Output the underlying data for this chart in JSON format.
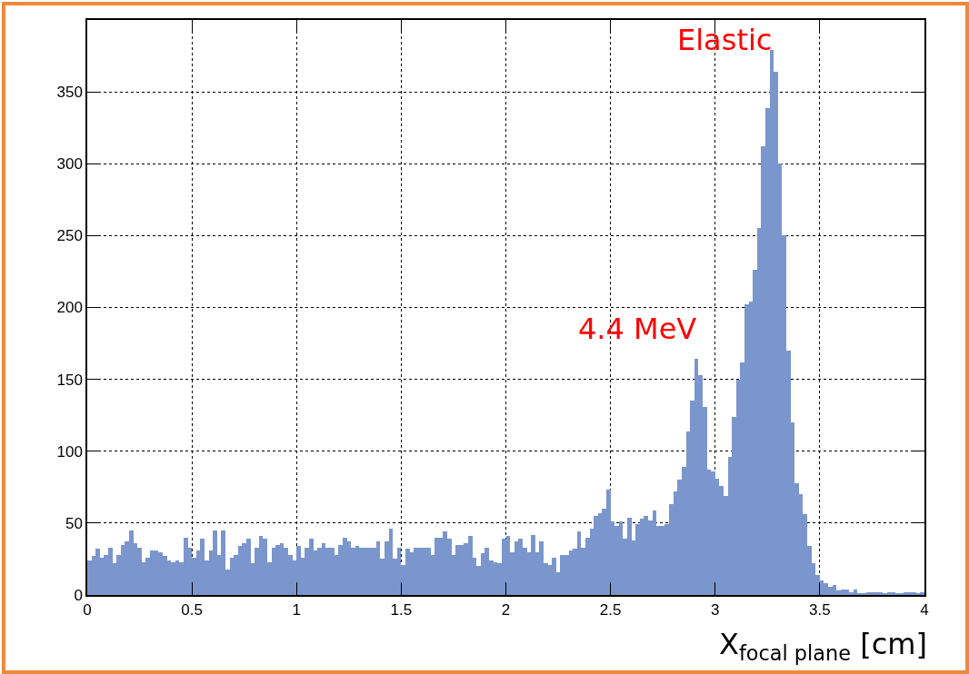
{
  "chart_data": {
    "type": "histogram",
    "xlabel": "X$_{focal plane}$ [cm]",
    "bins": [
      0,
      0.02,
      0.04,
      0.06,
      0.08,
      0.1,
      0.12,
      0.14,
      0.16,
      0.18,
      0.2,
      0.22,
      0.24,
      0.26,
      0.28,
      0.3,
      0.32,
      0.34,
      0.36,
      0.38,
      0.4,
      0.42,
      0.44,
      0.46,
      0.48,
      0.5,
      0.52,
      0.54,
      0.56,
      0.58,
      0.6,
      0.62,
      0.64,
      0.66,
      0.68,
      0.7,
      0.72,
      0.74,
      0.76,
      0.78,
      0.8,
      0.82,
      0.84,
      0.86,
      0.88,
      0.9,
      0.92,
      0.94,
      0.96,
      0.98,
      1,
      1.02,
      1.04,
      1.06,
      1.08,
      1.1,
      1.12,
      1.14,
      1.16,
      1.18,
      1.2,
      1.22,
      1.24,
      1.26,
      1.28,
      1.3,
      1.32,
      1.34,
      1.36,
      1.38,
      1.4,
      1.42,
      1.44,
      1.46,
      1.48,
      1.5,
      1.52,
      1.54,
      1.56,
      1.58,
      1.6,
      1.62,
      1.64,
      1.66,
      1.68,
      1.7,
      1.72,
      1.74,
      1.76,
      1.78,
      1.8,
      1.82,
      1.84,
      1.86,
      1.88,
      1.9,
      1.92,
      1.94,
      1.96,
      1.98,
      2,
      2.02,
      2.04,
      2.06,
      2.08,
      2.1,
      2.12,
      2.14,
      2.16,
      2.18,
      2.2,
      2.22,
      2.24,
      2.26,
      2.28,
      2.3,
      2.32,
      2.34,
      2.36,
      2.38,
      2.4,
      2.42,
      2.44,
      2.46,
      2.48,
      2.5,
      2.52,
      2.54,
      2.56,
      2.58,
      2.6,
      2.62,
      2.64,
      2.66,
      2.68,
      2.7,
      2.72,
      2.74,
      2.76,
      2.78,
      2.8,
      2.82,
      2.84,
      2.86,
      2.88,
      2.9,
      2.92,
      2.94,
      2.96,
      2.98,
      3,
      3.02,
      3.04,
      3.06,
      3.08,
      3.1,
      3.12,
      3.14,
      3.16,
      3.18,
      3.2,
      3.22,
      3.24,
      3.26,
      3.28,
      3.3,
      3.32,
      3.34,
      3.36,
      3.38,
      3.4,
      3.42,
      3.44,
      3.46,
      3.48,
      3.5,
      3.52,
      3.54,
      3.56,
      3.58,
      3.6,
      3.62,
      3.64,
      3.66,
      3.68,
      3.7,
      3.72,
      3.74,
      3.76,
      3.78,
      3.8,
      3.82,
      3.84,
      3.86,
      3.88,
      3.9,
      3.92,
      3.94,
      3.96,
      3.98,
      4
    ],
    "values": [
      24,
      27,
      32,
      26,
      28,
      33,
      22,
      28,
      35,
      37,
      45,
      36,
      33,
      23,
      26,
      31,
      31,
      30,
      27,
      24,
      23,
      24,
      23,
      40,
      33,
      26,
      31,
      39,
      24,
      31,
      45,
      28,
      45,
      18,
      26,
      28,
      34,
      36,
      39,
      22,
      33,
      41,
      39,
      23,
      33,
      35,
      36,
      33,
      28,
      24,
      34,
      26,
      33,
      39,
      31,
      33,
      36,
      33,
      33,
      28,
      35,
      40,
      37,
      33,
      34,
      33,
      33,
      33,
      33,
      37,
      25,
      37,
      46,
      25,
      33,
      21,
      32,
      30,
      33,
      33,
      33,
      33,
      28,
      40,
      40,
      44,
      39,
      28,
      35,
      35,
      36,
      41,
      26,
      20,
      29,
      33,
      24,
      23,
      22,
      39,
      41,
      30,
      37,
      39,
      33,
      30,
      42,
      30,
      37,
      22,
      21,
      26,
      16,
      28,
      28,
      31,
      32,
      44,
      33,
      40,
      46,
      55,
      57,
      60,
      73,
      51,
      48,
      51,
      39,
      54,
      38,
      49,
      53,
      55,
      52,
      59,
      48,
      48,
      49,
      63,
      72,
      80,
      89,
      114,
      135,
      164,
      153,
      131,
      87,
      86,
      81,
      76,
      69,
      96,
      124,
      150,
      162,
      202,
      204,
      226,
      255,
      312,
      339,
      379,
      364,
      300,
      250,
      170,
      120,
      78,
      70,
      56,
      34,
      22,
      14,
      10,
      8,
      6,
      7,
      3,
      4,
      4,
      2,
      4,
      1,
      1,
      2,
      2,
      2,
      2,
      1,
      2,
      2,
      1,
      1,
      2,
      2,
      2,
      1,
      2
    ],
    "color": "#7b96cc",
    "xlim": [
      0,
      4
    ],
    "xticks": [
      0,
      0.5,
      1,
      1.5,
      2,
      2.5,
      3,
      3.5,
      4
    ],
    "ylim": [
      0,
      400
    ],
    "yticks": [
      0,
      50,
      100,
      150,
      200,
      250,
      300,
      350
    ],
    "grid": true,
    "annotations": [
      {
        "text": "Elastic",
        "x": 3.28,
        "y": 365
      },
      {
        "text": "4.4 MeV",
        "x": 2.92,
        "y": 164
      }
    ]
  }
}
